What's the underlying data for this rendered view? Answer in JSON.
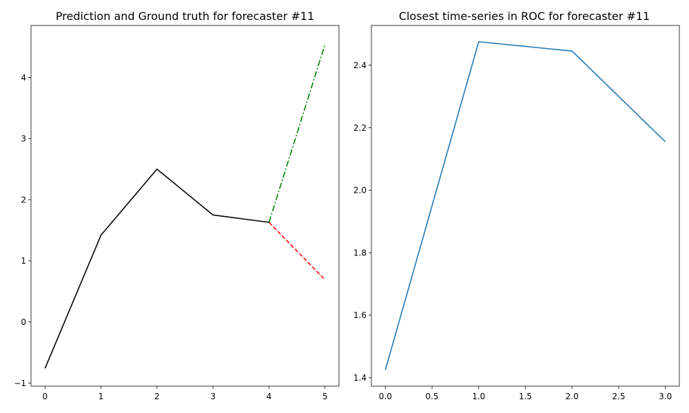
{
  "chart_data": [
    {
      "type": "line",
      "title": "Prediction and Ground truth for forecaster #11",
      "xlabel": "",
      "ylabel": "",
      "xlim": [
        -0.25,
        5.25
      ],
      "ylim": [
        -1.05,
        4.85
      ],
      "xticks": [
        0,
        1,
        2,
        3,
        4,
        5
      ],
      "xtick_labels": [
        "0",
        "1",
        "2",
        "3",
        "4",
        "5"
      ],
      "yticks": [
        -1,
        0,
        1,
        2,
        3,
        4
      ],
      "ytick_labels": [
        "−1",
        "0",
        "1",
        "2",
        "3",
        "4"
      ],
      "grid": false,
      "series": [
        {
          "color": "#000000",
          "style": "solid",
          "x": [
            0,
            1,
            2,
            3,
            4
          ],
          "y": [
            -0.76,
            1.42,
            2.5,
            1.75,
            1.63
          ]
        },
        {
          "color": "#ff0000",
          "style": "dashed",
          "x": [
            4,
            5
          ],
          "y": [
            1.63,
            0.69
          ]
        },
        {
          "color": "#008000",
          "style": "dashdot",
          "x": [
            4,
            5
          ],
          "y": [
            1.63,
            4.54
          ]
        }
      ]
    },
    {
      "type": "line",
      "title": "Closest time-series in ROC for forecaster #11",
      "xlabel": "",
      "ylabel": "",
      "xlim": [
        -0.15,
        3.15
      ],
      "ylim": [
        1.373,
        2.527
      ],
      "xticks": [
        0,
        0.5,
        1,
        1.5,
        2,
        2.5,
        3
      ],
      "xtick_labels": [
        "0.0",
        "0.5",
        "1.0",
        "1.5",
        "2.0",
        "2.5",
        "3.0"
      ],
      "yticks": [
        1.4,
        1.6,
        1.8,
        2.0,
        2.2,
        2.4
      ],
      "ytick_labels": [
        "1.4",
        "1.6",
        "1.8",
        "2.0",
        "2.2",
        "2.4"
      ],
      "grid": false,
      "series": [
        {
          "color": "#1f77b4",
          "style": "solid",
          "x": [
            0,
            1,
            2,
            3
          ],
          "y": [
            1.425,
            2.475,
            2.445,
            2.155
          ]
        }
      ]
    }
  ]
}
